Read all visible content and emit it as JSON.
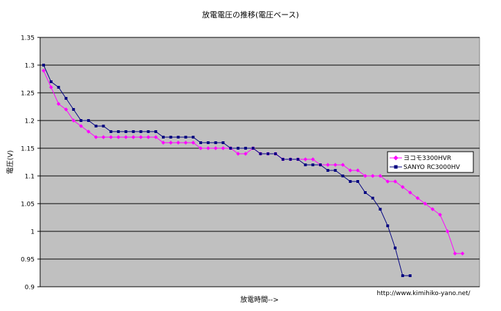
{
  "chart_data": {
    "type": "line",
    "title": "放電電圧の推移(電圧ベース)",
    "xlabel": "放電時間-->",
    "ylabel": "電圧(V)",
    "ylim": [
      0.9,
      1.35
    ],
    "yticks": [
      "1.35",
      "1.3",
      "1.25",
      "1.2",
      "1.15",
      "1.1",
      "1.05",
      "1",
      "0.95",
      "0.9"
    ],
    "ytick_values": [
      1.35,
      1.3,
      1.25,
      1.2,
      1.15,
      1.1,
      1.05,
      1.0,
      0.95,
      0.9
    ],
    "grid": true,
    "legend_position": "right",
    "plot_background": "#c0c0c0",
    "series": [
      {
        "name": "ヨコモ3300HVR",
        "color": "#ff00ff",
        "marker": "diamond",
        "values": [
          1.29,
          1.26,
          1.23,
          1.22,
          1.2,
          1.19,
          1.18,
          1.17,
          1.17,
          1.17,
          1.17,
          1.17,
          1.17,
          1.17,
          1.17,
          1.17,
          1.16,
          1.16,
          1.16,
          1.16,
          1.16,
          1.15,
          1.15,
          1.15,
          1.15,
          1.15,
          1.14,
          1.14,
          1.15,
          1.14,
          1.14,
          1.14,
          1.13,
          1.13,
          1.13,
          1.13,
          1.13,
          1.12,
          1.12,
          1.12,
          1.12,
          1.11,
          1.11,
          1.1,
          1.1,
          1.1,
          1.09,
          1.09,
          1.08,
          1.07,
          1.06,
          1.05,
          1.04,
          1.03,
          1.0,
          0.96,
          0.96
        ]
      },
      {
        "name": "SANYO RC3000HV",
        "color": "#000080",
        "marker": "square",
        "values": [
          1.3,
          1.27,
          1.26,
          1.24,
          1.22,
          1.2,
          1.2,
          1.19,
          1.19,
          1.18,
          1.18,
          1.18,
          1.18,
          1.18,
          1.18,
          1.18,
          1.17,
          1.17,
          1.17,
          1.17,
          1.17,
          1.16,
          1.16,
          1.16,
          1.16,
          1.15,
          1.15,
          1.15,
          1.15,
          1.14,
          1.14,
          1.14,
          1.13,
          1.13,
          1.13,
          1.12,
          1.12,
          1.12,
          1.11,
          1.11,
          1.1,
          1.09,
          1.09,
          1.07,
          1.06,
          1.04,
          1.01,
          0.97,
          0.92,
          0.92
        ]
      }
    ]
  },
  "credit": "http://www.kimihiko-yano.net/"
}
